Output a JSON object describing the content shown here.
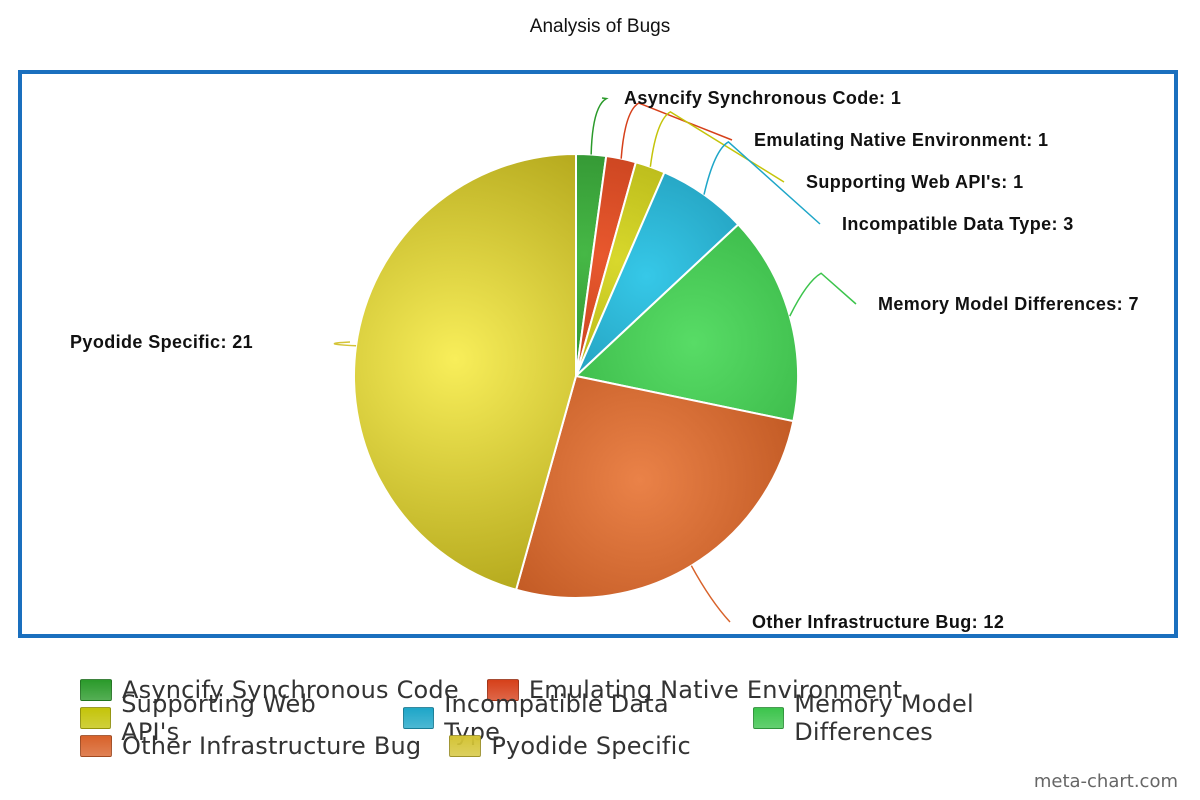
{
  "chart_data": {
    "type": "pie",
    "title": "Analysis of Bugs",
    "slices": [
      {
        "name": "Asyncify Synchronous Code",
        "value": 1,
        "label": "Asyncify Synchronous Code: 1",
        "color": "#2a9a2a",
        "dark": "#1e6e1e",
        "light": "#46b846",
        "label_side": "right",
        "label_pos": "upper"
      },
      {
        "name": "Emulating Native Environment",
        "value": 1,
        "label": "Emulating Native Environment: 1",
        "color": "#d6401a",
        "dark": "#a82e10",
        "light": "#e8582e",
        "label_side": "right",
        "label_pos": "upper"
      },
      {
        "name": "Supporting Web API's",
        "value": 1,
        "label": "Supporting Web API's: 1",
        "color": "#c4c40a",
        "dark": "#989806",
        "light": "#d8d82c",
        "label_side": "right",
        "label_pos": "upper"
      },
      {
        "name": "Incompatible Data Type",
        "value": 3,
        "label": "Incompatible Data Type: 3",
        "color": "#1ea6c8",
        "dark": "#137c98",
        "light": "#36c8e8",
        "label_side": "right",
        "label_pos": "upper"
      },
      {
        "name": "Memory Model Differences",
        "value": 7,
        "label": "Memory Model Differences: 7",
        "color": "#3cc44c",
        "dark": "#28a236",
        "light": "#58dc66",
        "label_side": "right",
        "label_pos": "upper"
      },
      {
        "name": "Other Infrastructure Bug",
        "value": 12,
        "label": "Other Infrastructure Bug: 12",
        "color": "#d8622a",
        "dark": "#b04814",
        "light": "#ea8248",
        "label_side": "right",
        "label_pos": "lower"
      },
      {
        "name": "Pyodide Specific",
        "value": 21,
        "label": "Pyodide Specific: 21",
        "color": "#d4c436",
        "dark": "#b4a81c",
        "light": "#f8ee5a",
        "label_side": "left",
        "label_pos": "upper"
      }
    ],
    "start_angle_deg": 0,
    "direction": "clockwise",
    "legend_position": "bottom"
  },
  "legend": {
    "rows": [
      [
        {
          "label": "Asyncify Synchronous Code",
          "color": "#2a9a2a"
        },
        {
          "label": "Emulating Native Environment",
          "color": "#d6401a"
        }
      ],
      [
        {
          "label": "Supporting Web API's",
          "color": "#c4c40a"
        },
        {
          "label": "Incompatible Data Type",
          "color": "#1ea6c8"
        },
        {
          "label": "Memory Model Differences",
          "color": "#3cc44c"
        }
      ],
      [
        {
          "label": "Other Infrastructure Bug",
          "color": "#d8622a"
        },
        {
          "label": "Pyodide Specific",
          "color": "#d4c436"
        }
      ]
    ]
  },
  "watermark": "meta-chart.com",
  "colors": {
    "frame_border": "#1a6fbe"
  }
}
